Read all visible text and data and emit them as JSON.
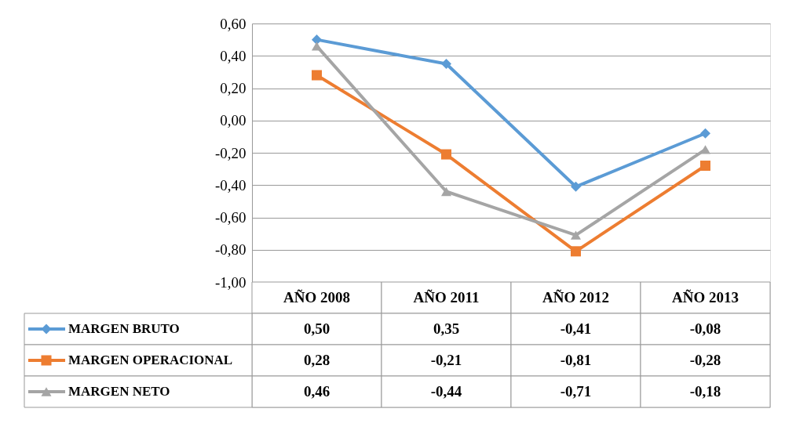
{
  "chart_data": {
    "type": "line",
    "categories": [
      "AÑO 2008",
      "AÑO 2011",
      "AÑO 2012",
      "AÑO 2013"
    ],
    "series": [
      {
        "name": "MARGEN BRUTO",
        "color": "#5b9bd5",
        "marker": "diamond",
        "values": [
          0.5,
          0.35,
          -0.41,
          -0.08
        ],
        "value_labels": [
          "0,50",
          "0,35",
          "-0,41",
          "-0,08"
        ]
      },
      {
        "name": "MARGEN OPERACIONAL",
        "color": "#ed7d31",
        "marker": "square",
        "values": [
          0.28,
          -0.21,
          -0.81,
          -0.28
        ],
        "value_labels": [
          "0,28",
          "-0,21",
          "-0,81",
          "-0,28"
        ]
      },
      {
        "name": "MARGEN NETO",
        "color": "#a5a5a5",
        "marker": "triangle",
        "values": [
          0.46,
          -0.44,
          -0.71,
          -0.18
        ],
        "value_labels": [
          "0,46",
          "-0,44",
          "-0,71",
          "-0,18"
        ]
      }
    ],
    "ylim": [
      -1.0,
      0.6
    ],
    "yticks": [
      {
        "value": -1.0,
        "label": "-1,00"
      },
      {
        "value": -0.8,
        "label": "-0,80"
      },
      {
        "value": -0.6,
        "label": "-0,60"
      },
      {
        "value": -0.4,
        "label": "-0,40"
      },
      {
        "value": -0.2,
        "label": "-0,20"
      },
      {
        "value": 0.0,
        "label": "0,00"
      },
      {
        "value": 0.2,
        "label": "0,20"
      },
      {
        "value": 0.4,
        "label": "0,40"
      },
      {
        "value": 0.6,
        "label": "0,60"
      }
    ],
    "grid": "y",
    "legend": "bottom left",
    "line_style": "solid"
  }
}
